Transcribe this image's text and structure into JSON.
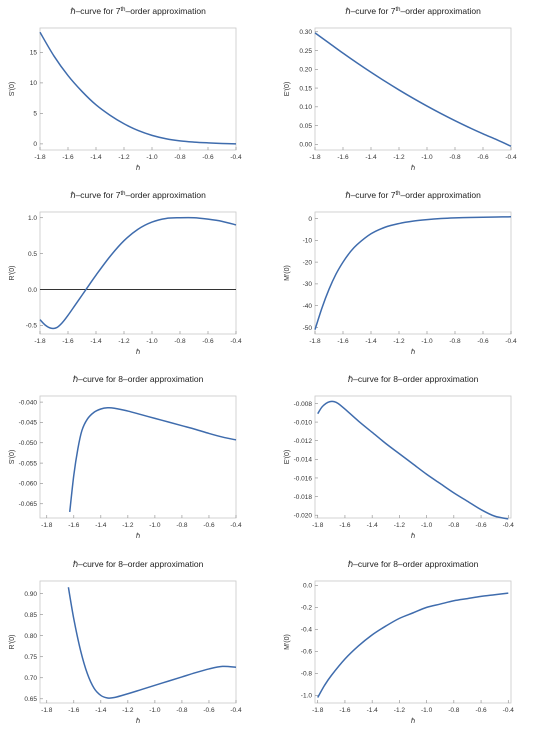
{
  "chart_data": [
    {
      "type": "line",
      "title_prefix": "ℏ–curve for 7",
      "title_sup": "th",
      "title_suffix": "–order approximation",
      "xlabel": "ℏ",
      "ylabel": "S'(0)",
      "xlim": [
        -1.8,
        -0.4
      ],
      "ylim": [
        -1,
        19
      ],
      "xticks": [
        "-1.8",
        "-1.6",
        "-1.4",
        "-1.2",
        "-1.0",
        "-0.8",
        "-0.6",
        "-0.4"
      ],
      "yticks": [
        "0",
        "5",
        "10",
        "15"
      ],
      "ytick_values": [
        0,
        5,
        10,
        15
      ],
      "zero_line": false,
      "series": [
        {
          "color": "#3f6cad",
          "x": [
            -1.8,
            -1.7,
            -1.6,
            -1.5,
            -1.4,
            -1.3,
            -1.2,
            -1.1,
            -1.0,
            -0.9,
            -0.8,
            -0.7,
            -0.6,
            -0.5,
            -0.4
          ],
          "y": [
            18.3,
            14.4,
            11.2,
            8.6,
            6.4,
            4.7,
            3.3,
            2.2,
            1.4,
            0.85,
            0.5,
            0.3,
            0.17,
            0.07,
            0.0
          ]
        }
      ]
    },
    {
      "type": "line",
      "title_prefix": "ℏ–curve for 7",
      "title_sup": "th",
      "title_suffix": "–order approximation",
      "xlabel": "ℏ",
      "ylabel": "E'(0)",
      "xlim": [
        -1.8,
        -0.4
      ],
      "ylim": [
        -0.015,
        0.31
      ],
      "xticks": [
        "-1.8",
        "-1.6",
        "-1.4",
        "-1.2",
        "-1.0",
        "-0.8",
        "-0.6",
        "-0.4"
      ],
      "yticks": [
        "0.00",
        "0.05",
        "0.10",
        "0.15",
        "0.20",
        "0.25",
        "0.30"
      ],
      "ytick_values": [
        0.0,
        0.05,
        0.1,
        0.15,
        0.2,
        0.25,
        0.3
      ],
      "zero_line": false,
      "series": [
        {
          "color": "#3f6cad",
          "x": [
            -1.8,
            -1.7,
            -1.6,
            -1.5,
            -1.4,
            -1.3,
            -1.2,
            -1.1,
            -1.0,
            -0.9,
            -0.8,
            -0.7,
            -0.6,
            -0.5,
            -0.4
          ],
          "y": [
            0.297,
            0.27,
            0.243,
            0.217,
            0.192,
            0.168,
            0.145,
            0.123,
            0.102,
            0.082,
            0.063,
            0.045,
            0.028,
            0.012,
            -0.005
          ]
        }
      ]
    },
    {
      "type": "line",
      "title_prefix": "ℏ–curve for 7",
      "title_sup": "th",
      "title_suffix": "–order approximation",
      "xlabel": "ℏ",
      "ylabel": "R'(0)",
      "xlim": [
        -1.8,
        -0.4
      ],
      "ylim": [
        -0.62,
        1.08
      ],
      "xticks": [
        "-1.8",
        "-1.6",
        "-1.4",
        "-1.2",
        "-1.0",
        "-0.8",
        "-0.6",
        "-0.4"
      ],
      "yticks": [
        "-0.5",
        "0.0",
        "0.5",
        "1.0"
      ],
      "ytick_values": [
        -0.5,
        0.0,
        0.5,
        1.0
      ],
      "zero_line": true,
      "series": [
        {
          "color": "#3f6cad",
          "x": [
            -1.8,
            -1.76,
            -1.72,
            -1.68,
            -1.64,
            -1.6,
            -1.55,
            -1.5,
            -1.45,
            -1.4,
            -1.3,
            -1.2,
            -1.1,
            -1.0,
            -0.9,
            -0.8,
            -0.7,
            -0.6,
            -0.5,
            -0.4
          ],
          "y": [
            -0.42,
            -0.5,
            -0.54,
            -0.53,
            -0.46,
            -0.36,
            -0.22,
            -0.08,
            0.06,
            0.2,
            0.46,
            0.68,
            0.84,
            0.94,
            0.99,
            1.0,
            1.0,
            0.98,
            0.95,
            0.9
          ]
        }
      ]
    },
    {
      "type": "line",
      "title_prefix": "ℏ–curve for 7",
      "title_sup": "th",
      "title_suffix": "–order approximation",
      "xlabel": "ℏ",
      "ylabel": "M'(0)",
      "xlim": [
        -1.8,
        -0.4
      ],
      "ylim": [
        -53,
        3
      ],
      "xticks": [
        "-1.8",
        "-1.6",
        "-1.4",
        "-1.2",
        "-1.0",
        "-0.8",
        "-0.6",
        "-0.4"
      ],
      "yticks": [
        "0",
        "-10",
        "-20",
        "-30",
        "-40",
        "-50"
      ],
      "ytick_values": [
        0,
        -10,
        -20,
        -30,
        -40,
        -50
      ],
      "zero_line": false,
      "series": [
        {
          "color": "#3f6cad",
          "x": [
            -1.8,
            -1.75,
            -1.7,
            -1.65,
            -1.6,
            -1.55,
            -1.5,
            -1.4,
            -1.3,
            -1.2,
            -1.1,
            -1.0,
            -0.9,
            -0.8,
            -0.7,
            -0.6,
            -0.5,
            -0.4
          ],
          "y": [
            -51,
            -41,
            -32.5,
            -25.5,
            -20,
            -15.5,
            -12,
            -7,
            -4,
            -2.3,
            -1.2,
            -0.5,
            0,
            0.3,
            0.5,
            0.6,
            0.7,
            0.8
          ]
        }
      ]
    },
    {
      "type": "line",
      "title_prefix": "ℏ–curve for 8–order approximation",
      "title_sup": "",
      "title_suffix": "",
      "xlabel": "ℏ",
      "ylabel": "S'(0)",
      "xlim": [
        -1.85,
        -0.4
      ],
      "ylim": [
        -0.0685,
        -0.0385
      ],
      "xticks": [
        "-1.8",
        "-1.6",
        "-1.4",
        "-1.2",
        "-1.0",
        "-0.8",
        "-0.6",
        "-0.4"
      ],
      "xtick_values": [
        -1.8,
        -1.6,
        -1.4,
        -1.2,
        -1.0,
        -0.8,
        -0.6,
        -0.4
      ],
      "yticks": [
        "-0.040",
        "-0.045",
        "-0.050",
        "-0.055",
        "-0.060",
        "-0.065"
      ],
      "ytick_values": [
        -0.04,
        -0.045,
        -0.05,
        -0.055,
        -0.06,
        -0.065
      ],
      "zero_line": false,
      "series": [
        {
          "color": "#3f6cad",
          "x": [
            -1.63,
            -1.6,
            -1.57,
            -1.54,
            -1.5,
            -1.45,
            -1.4,
            -1.35,
            -1.3,
            -1.2,
            -1.1,
            -1.0,
            -0.9,
            -0.8,
            -0.7,
            -0.6,
            -0.5,
            -0.4
          ],
          "y": [
            -0.067,
            -0.058,
            -0.0515,
            -0.047,
            -0.0442,
            -0.0425,
            -0.0417,
            -0.0414,
            -0.0415,
            -0.0422,
            -0.0431,
            -0.044,
            -0.0449,
            -0.0458,
            -0.0467,
            -0.0477,
            -0.0486,
            -0.0493
          ]
        }
      ]
    },
    {
      "type": "line",
      "title_prefix": "ℏ–curve for 8–order approximation",
      "title_sup": "",
      "title_suffix": "",
      "xlabel": "ℏ",
      "ylabel": "E'(0)",
      "xlim": [
        -1.82,
        -0.38
      ],
      "ylim": [
        -0.0203,
        -0.0072
      ],
      "xticks": [
        "-1.8",
        "-1.6",
        "-1.4",
        "-1.2",
        "-1.0",
        "-0.8",
        "-0.6",
        "-0.4"
      ],
      "xtick_values": [
        -1.8,
        -1.6,
        -1.4,
        -1.2,
        -1.0,
        -0.8,
        -0.6,
        -0.4
      ],
      "yticks": [
        "-0.008",
        "-0.010",
        "-0.012",
        "-0.014",
        "-0.016",
        "-0.018",
        "-0.020"
      ],
      "ytick_values": [
        -0.008,
        -0.01,
        -0.012,
        -0.014,
        -0.016,
        -0.018,
        -0.02
      ],
      "zero_line": false,
      "series": [
        {
          "color": "#3f6cad",
          "x": [
            -1.8,
            -1.77,
            -1.74,
            -1.71,
            -1.68,
            -1.65,
            -1.6,
            -1.5,
            -1.4,
            -1.3,
            -1.2,
            -1.1,
            -1.0,
            -0.9,
            -0.8,
            -0.7,
            -0.6,
            -0.5,
            -0.4
          ],
          "y": [
            -0.0091,
            -0.0084,
            -0.008,
            -0.0078,
            -0.0078,
            -0.008,
            -0.0086,
            -0.0099,
            -0.0111,
            -0.0123,
            -0.0134,
            -0.0145,
            -0.0156,
            -0.0166,
            -0.0176,
            -0.0185,
            -0.0194,
            -0.0201,
            -0.0204
          ]
        }
      ]
    },
    {
      "type": "line",
      "title_prefix": "ℏ–curve for 8–order approximation",
      "title_sup": "",
      "title_suffix": "",
      "xlabel": "ℏ",
      "ylabel": "R'(0)",
      "xlim": [
        -1.85,
        -0.4
      ],
      "ylim": [
        0.64,
        0.93
      ],
      "xticks": [
        "-1.8",
        "-1.6",
        "-1.4",
        "-1.2",
        "-1.0",
        "-0.8",
        "-0.6",
        "-0.4"
      ],
      "xtick_values": [
        -1.8,
        -1.6,
        -1.4,
        -1.2,
        -1.0,
        -0.8,
        -0.6,
        -0.4
      ],
      "yticks": [
        "0.90",
        "0.85",
        "0.80",
        "0.75",
        "0.70",
        "0.65"
      ],
      "ytick_values": [
        0.9,
        0.85,
        0.8,
        0.75,
        0.7,
        0.65
      ],
      "zero_line": false,
      "series": [
        {
          "color": "#3f6cad",
          "x": [
            -1.64,
            -1.6,
            -1.55,
            -1.5,
            -1.45,
            -1.4,
            -1.35,
            -1.3,
            -1.2,
            -1.1,
            -1.0,
            -0.9,
            -0.8,
            -0.7,
            -0.6,
            -0.5,
            -0.4
          ],
          "y": [
            0.915,
            0.84,
            0.765,
            0.71,
            0.675,
            0.658,
            0.652,
            0.653,
            0.662,
            0.672,
            0.682,
            0.692,
            0.702,
            0.712,
            0.721,
            0.727,
            0.725
          ]
        }
      ]
    },
    {
      "type": "line",
      "title_prefix": "ℏ–curve for 8–order approximation",
      "title_sup": "",
      "title_suffix": "",
      "xlabel": "ℏ",
      "ylabel": "M'(0)",
      "xlim": [
        -1.82,
        -0.38
      ],
      "ylim": [
        -1.07,
        0.04
      ],
      "xticks": [
        "-1.8",
        "-1.6",
        "-1.4",
        "-1.2",
        "-1.0",
        "-0.8",
        "-0.6",
        "-0.4"
      ],
      "xtick_values": [
        -1.8,
        -1.6,
        -1.4,
        -1.2,
        -1.0,
        -0.8,
        -0.6,
        -0.4
      ],
      "yticks": [
        "0.0",
        "-0.2",
        "-0.4",
        "-0.6",
        "-0.8",
        "-1.0"
      ],
      "ytick_values": [
        0.0,
        -0.2,
        -0.4,
        -0.6,
        -0.8,
        -1.0
      ],
      "zero_line": false,
      "series": [
        {
          "color": "#3f6cad",
          "x": [
            -1.8,
            -1.75,
            -1.7,
            -1.6,
            -1.5,
            -1.4,
            -1.3,
            -1.2,
            -1.1,
            -1.0,
            -0.9,
            -0.8,
            -0.7,
            -0.6,
            -0.5,
            -0.4
          ],
          "y": [
            -1.02,
            -0.91,
            -0.82,
            -0.67,
            -0.55,
            -0.45,
            -0.37,
            -0.3,
            -0.25,
            -0.2,
            -0.17,
            -0.14,
            -0.12,
            -0.1,
            -0.085,
            -0.07
          ]
        }
      ]
    }
  ]
}
